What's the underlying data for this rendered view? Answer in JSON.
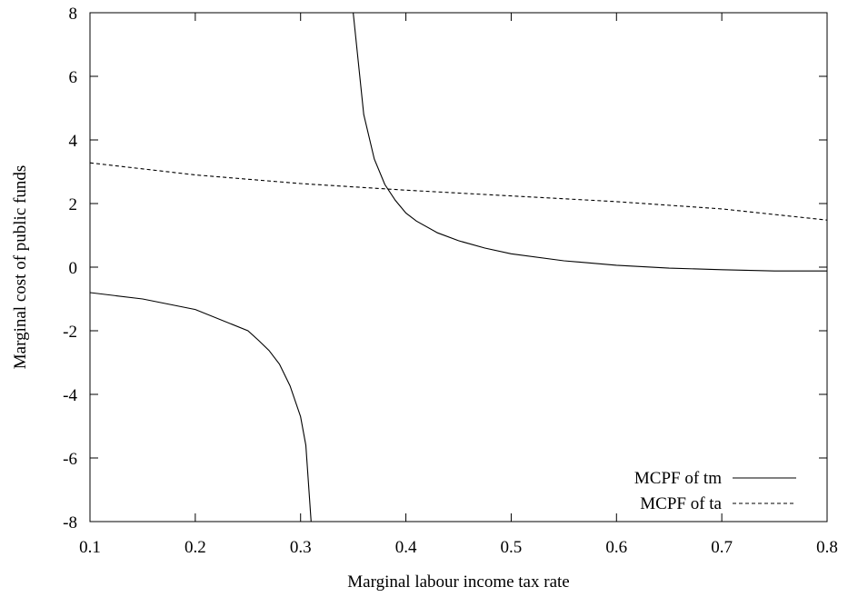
{
  "chart_data": {
    "type": "line",
    "title": "",
    "xlabel": "Marginal labour income tax rate",
    "ylabel": "Marginal cost of public funds",
    "xlim": [
      0.1,
      0.8
    ],
    "ylim": [
      -8,
      8
    ],
    "xticks": [
      0.1,
      0.2,
      0.3,
      0.4,
      0.5,
      0.6,
      0.7,
      0.8
    ],
    "xtick_labels": [
      "0.1",
      "0.2",
      "0.3",
      "0.4",
      "0.5",
      "0.6",
      "0.7",
      "0.8"
    ],
    "yticks": [
      8,
      6,
      4,
      2,
      0,
      -2,
      -4,
      -6,
      -8
    ],
    "ytick_labels": [
      "8",
      "6",
      "4",
      "2",
      "0",
      "-2",
      "-4",
      "-6",
      "-8"
    ],
    "grid": false,
    "legend_position": "bottom-right",
    "series": [
      {
        "name": "MCPF of tm",
        "style": "solid",
        "segments": [
          {
            "x": [
              0.1,
              0.15,
              0.2,
              0.25,
              0.26,
              0.27,
              0.28,
              0.29,
              0.3,
              0.305,
              0.31
            ],
            "y": [
              -0.8,
              -1.0,
              -1.33,
              -2.0,
              -2.3,
              -2.62,
              -3.05,
              -3.73,
              -4.7,
              -5.6,
              -8.0
            ]
          },
          {
            "x": [
              0.35,
              0.36,
              0.37,
              0.38,
              0.39,
              0.4,
              0.41,
              0.43,
              0.45,
              0.475,
              0.5,
              0.55,
              0.6,
              0.65,
              0.7,
              0.75,
              0.8
            ],
            "y": [
              8.0,
              4.8,
              3.4,
              2.6,
              2.1,
              1.7,
              1.45,
              1.08,
              0.83,
              0.6,
              0.42,
              0.2,
              0.06,
              -0.03,
              -0.08,
              -0.12,
              -0.12
            ]
          }
        ]
      },
      {
        "name": "MCPF of ta",
        "style": "dashed",
        "segments": [
          {
            "x": [
              0.1,
              0.2,
              0.3,
              0.4,
              0.5,
              0.6,
              0.7,
              0.8
            ],
            "y": [
              3.28,
              2.9,
              2.63,
              2.42,
              2.24,
              2.06,
              1.83,
              1.48
            ]
          }
        ]
      }
    ]
  }
}
